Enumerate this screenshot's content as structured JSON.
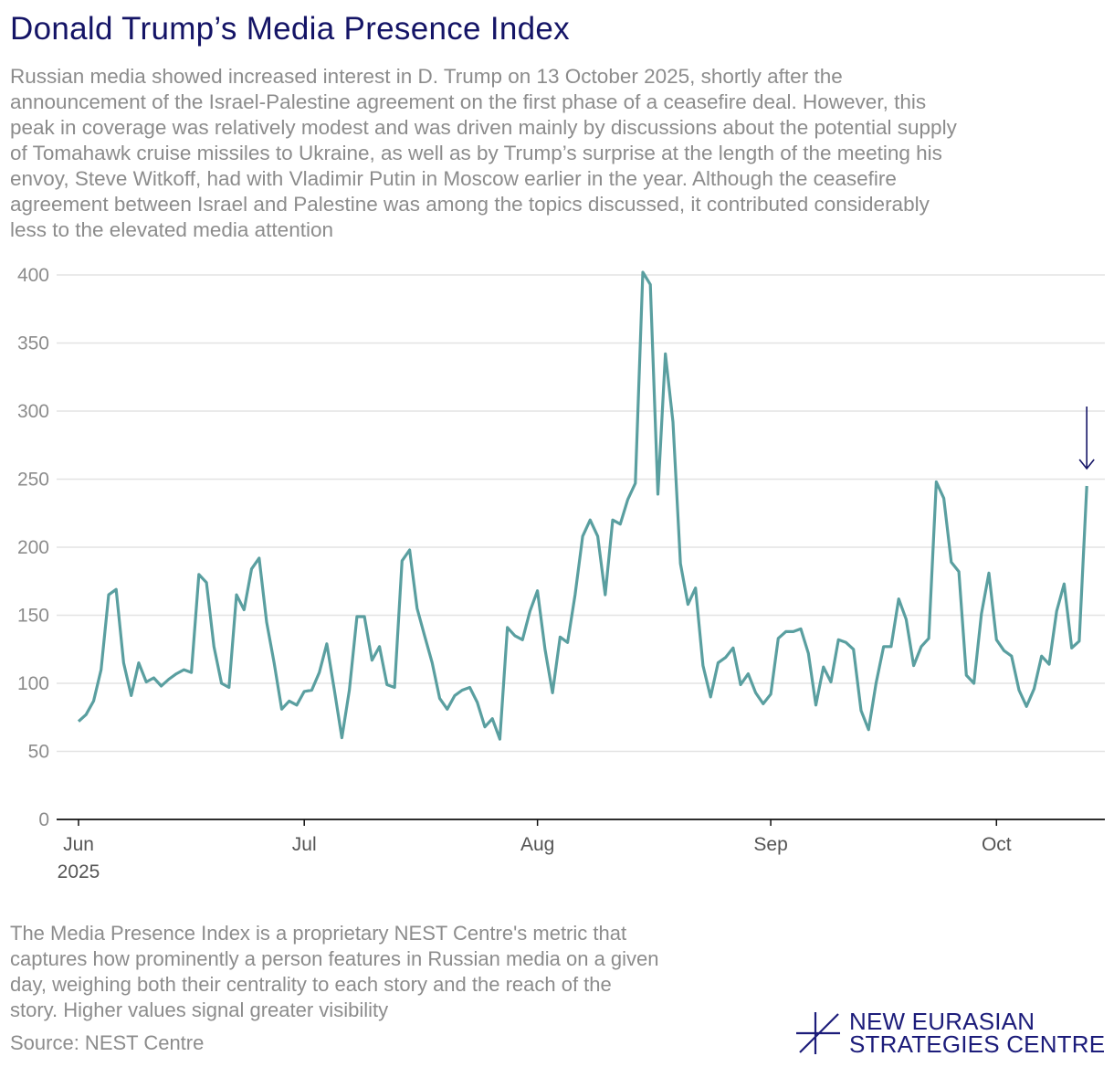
{
  "header": {
    "title": "Donald Trump’s Media Presence Index",
    "subtitle_lines": [
      "Russian media showed increased interest in D. Trump on 13 October 2025, shortly after the",
      "announcement of the Israel-Palestine agreement on the first phase of a ceasefire deal. However, this",
      "peak in coverage was relatively modest and was driven mainly by discussions about the potential supply",
      "of Tomahawk cruise missiles to Ukraine, as well as by Trump’s surprise at the length of the meeting his",
      "envoy, Steve Witkoff, had with Vladimir Putin in Moscow earlier in the year. Although the ceasefire",
      "agreement between Israel and Palestine was among the topics discussed, it contributed considerably",
      "less to the elevated media attention"
    ]
  },
  "footer": {
    "note_lines": [
      "The Media Presence Index is a proprietary NEST Centre's metric that",
      "captures how prominently a person features in Russian media on a given",
      "day, weighing both their centrality to each story and the reach of the",
      "story. Higher values signal greater visibility"
    ],
    "source": "Source: NEST Centre",
    "logo_lines": [
      "NEW EURASIAN",
      "STRATEGIES CENTRE"
    ]
  },
  "colors": {
    "line": "#5a9fa0",
    "title": "#141466",
    "grid": "#e3e3e3",
    "arrow": "#141466"
  },
  "chart_data": {
    "type": "line",
    "title": "Donald Trump’s Media Presence Index",
    "xlabel": "",
    "ylabel": "",
    "ylim": [
      0,
      400
    ],
    "yticks": [
      0,
      50,
      100,
      150,
      200,
      250,
      300,
      350,
      400
    ],
    "grid": true,
    "start_date": "2025-06-01",
    "end_date": "2025-10-13",
    "xticks": [
      {
        "label": "Jun",
        "sublabel": "2025",
        "day_index": 0
      },
      {
        "label": "Jul",
        "day_index": 30
      },
      {
        "label": "Aug",
        "day_index": 61
      },
      {
        "label": "Sep",
        "day_index": 92
      },
      {
        "label": "Oct",
        "day_index": 122
      }
    ],
    "annotation": {
      "type": "arrow",
      "day_index": 134,
      "label": "13 October 2025"
    },
    "series": [
      {
        "name": "Media Presence Index",
        "values": [
          72,
          77,
          87,
          110,
          165,
          169,
          115,
          91,
          115,
          101,
          104,
          98,
          103,
          107,
          110,
          108,
          180,
          174,
          127,
          100,
          97,
          165,
          154,
          184,
          192,
          145,
          115,
          81,
          87,
          84,
          94,
          95,
          108,
          129,
          95,
          60,
          95,
          149,
          149,
          117,
          127,
          99,
          97,
          190,
          198,
          155,
          135,
          115,
          89,
          81,
          91,
          95,
          97,
          86,
          68,
          74,
          59,
          141,
          135,
          132,
          153,
          168,
          125,
          93,
          134,
          130,
          165,
          208,
          220,
          208,
          165,
          220,
          217,
          235,
          247,
          402,
          393,
          239,
          342,
          292,
          188,
          158,
          170,
          113,
          90,
          115,
          119,
          126,
          99,
          107,
          93,
          85,
          92,
          133,
          138,
          138,
          140,
          122,
          84,
          112,
          101,
          132,
          130,
          125,
          80,
          66,
          100,
          127,
          127,
          162,
          147,
          113,
          127,
          133,
          248,
          236,
          189,
          182,
          106,
          100,
          151,
          181,
          132,
          124,
          120,
          95,
          83,
          96,
          120,
          114,
          153,
          173,
          126,
          131,
          245
        ]
      }
    ]
  }
}
